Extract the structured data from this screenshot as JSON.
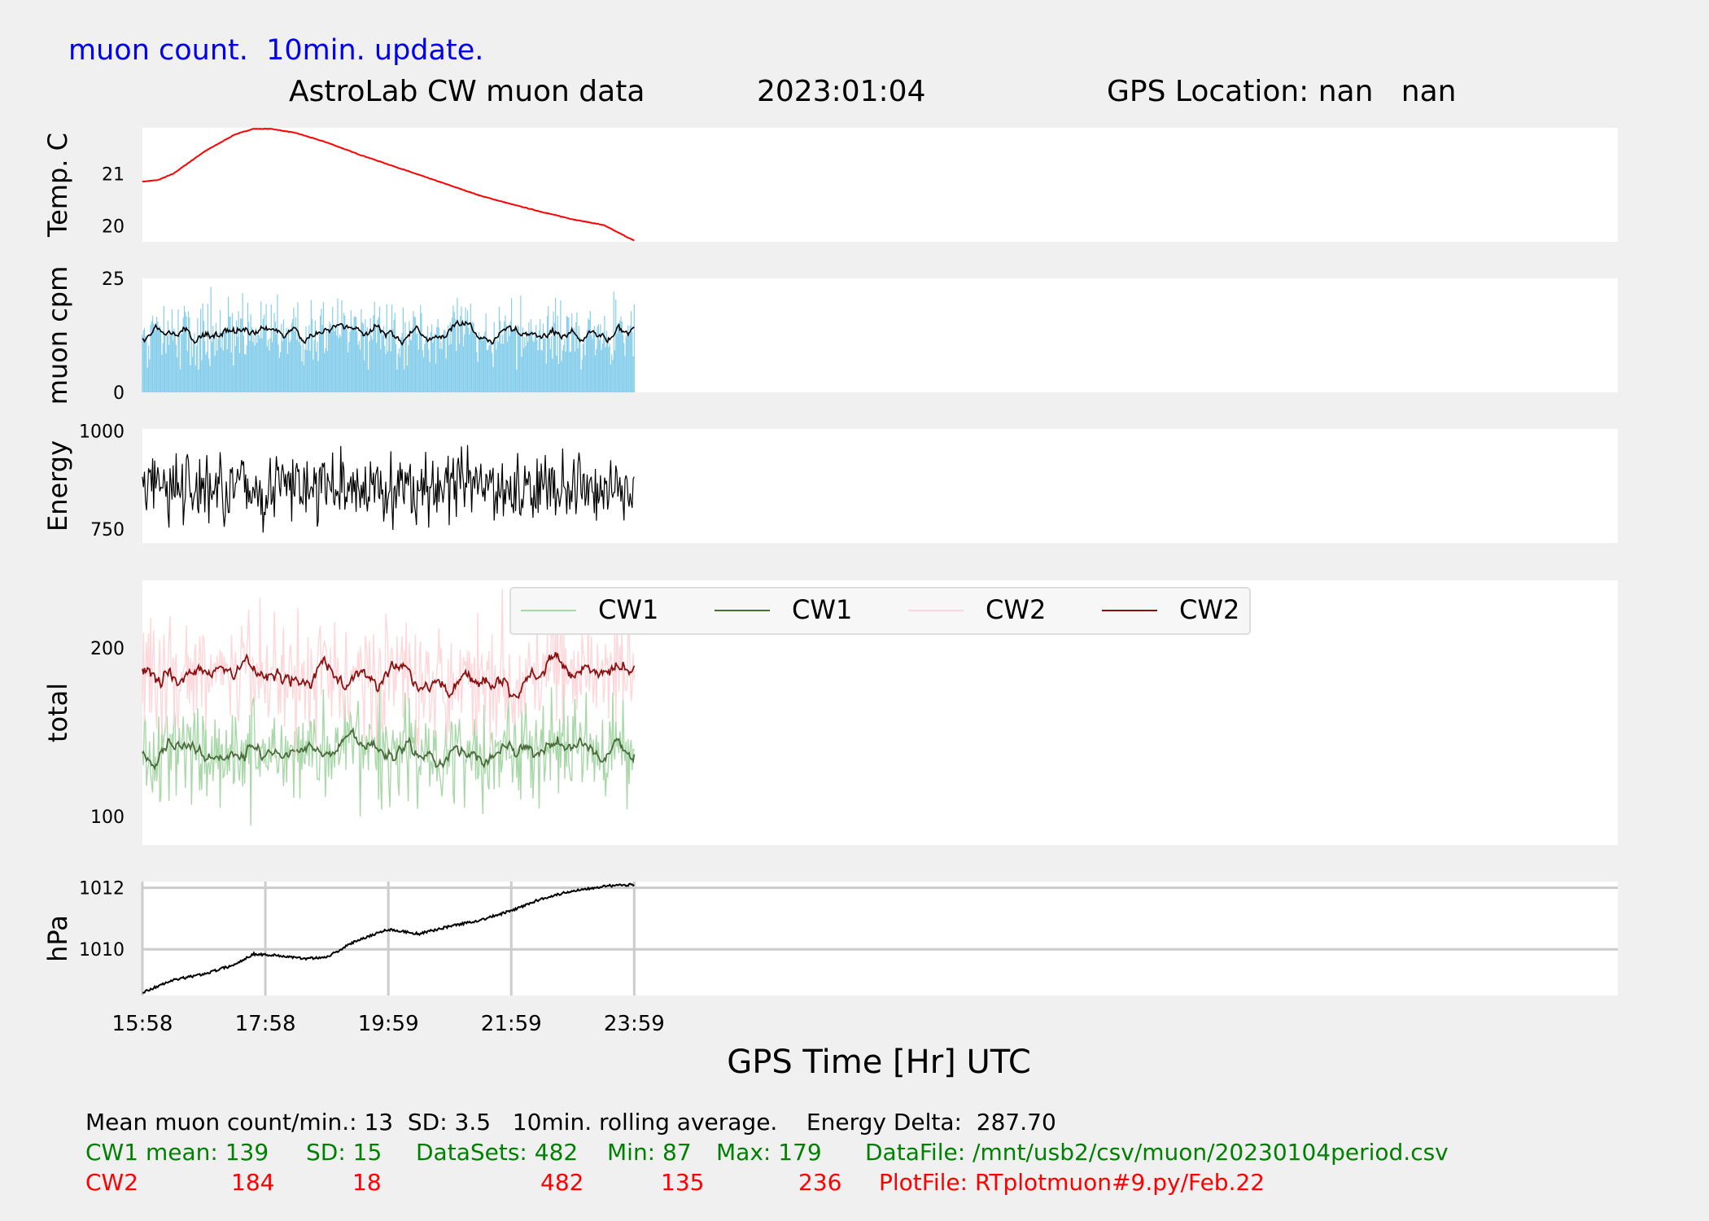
{
  "header": {
    "update_note": "muon count.  10min. update.",
    "title": "AstroLab CW muon data",
    "date": "2023:01:04",
    "gps": "GPS Location: nan   nan"
  },
  "colors": {
    "background": "#f0f0f0",
    "panel": "#ffffff",
    "temp": "#ff0000",
    "cpm_bar": "#87ceeb",
    "line": "#000000",
    "cw1_raw": "#a8d8a8",
    "cw1_avg": "#4a6b3a",
    "cw2_raw": "#ffd7da",
    "cw2_avg": "#8b1010",
    "blue_text": "#0000ee",
    "green_text": "#008000",
    "red_text": "#ff0000",
    "grid": "#cccccc"
  },
  "chart_data": {
    "type": "line",
    "x_tick_labels": [
      "15:58",
      "17:58",
      "19:59",
      "21:59",
      "23:59"
    ],
    "x_range_hours": [
      0,
      24
    ],
    "x_data_span_hours": [
      0,
      8
    ],
    "xlabel": "GPS Time  [Hr] UTC",
    "panels": [
      {
        "id": "temp",
        "ylabel": "Temp. C",
        "yticks": [
          20,
          21
        ],
        "ylim": [
          19.7,
          21.88
        ],
        "series": [
          {
            "name": "temperature",
            "kind": "line",
            "x": [
              0,
              0.25,
              0.5,
              1.0,
              1.5,
              1.8,
              2.1,
              2.5,
              3,
              3.5,
              4,
              4.5,
              5,
              5.5,
              6,
              6.5,
              7,
              7.5,
              8
            ],
            "y": [
              20.85,
              20.88,
              21.0,
              21.42,
              21.75,
              21.86,
              21.86,
              21.78,
              21.6,
              21.38,
              21.18,
              20.98,
              20.78,
              20.58,
              20.42,
              20.27,
              20.13,
              20.02,
              19.72
            ]
          }
        ]
      },
      {
        "id": "cpm",
        "ylabel": "muon cpm",
        "yticks": [
          0,
          25
        ],
        "ylim": [
          0,
          25
        ],
        "series": [
          {
            "name": "muon cpm",
            "kind": "bars",
            "mean": 13,
            "sd": 3.5,
            "count": 482
          },
          {
            "name": "10min rolling average",
            "kind": "line",
            "mean": 13
          }
        ]
      },
      {
        "id": "energy",
        "ylabel": "Energy",
        "yticks": [
          750,
          1000
        ],
        "ylim": [
          715,
          1005
        ],
        "series": [
          {
            "name": "energy",
            "kind": "line",
            "mean": 855,
            "min": 712,
            "max": 1000
          }
        ]
      },
      {
        "id": "total",
        "ylabel": "total",
        "yticks": [
          100,
          200
        ],
        "ylim": [
          83,
          240
        ],
        "legend_position": "top-center",
        "legend": [
          "CW1",
          "CW1",
          "CW2",
          "CW2"
        ],
        "series": [
          {
            "name": "CW1",
            "kind": "raw",
            "mean": 139,
            "sd": 15,
            "min": 87,
            "max": 179
          },
          {
            "name": "CW1",
            "kind": "average",
            "mean": 139
          },
          {
            "name": "CW2",
            "kind": "raw",
            "mean": 184,
            "sd": 18,
            "min": 135,
            "max": 236
          },
          {
            "name": "CW2",
            "kind": "average",
            "mean": 184
          }
        ]
      },
      {
        "id": "hpa",
        "ylabel": "hPa",
        "yticks": [
          1010,
          1012
        ],
        "ylim": [
          1008.5,
          1012.2
        ],
        "grid": true,
        "series": [
          {
            "name": "pressure",
            "kind": "line",
            "x": [
              0,
              0.5,
              1,
              1.5,
              1.8,
              2.2,
              2.6,
              3.0,
              3.5,
              4.0,
              4.5,
              5.0,
              5.5,
              6.0,
              6.5,
              7.0,
              7.5,
              8.0
            ],
            "y": [
              1008.6,
              1009.0,
              1009.2,
              1009.5,
              1009.85,
              1009.8,
              1009.7,
              1009.75,
              1010.3,
              1010.65,
              1010.5,
              1010.75,
              1010.95,
              1011.25,
              1011.65,
              1011.9,
              1012.05,
              1012.1
            ]
          }
        ]
      }
    ]
  },
  "stats": {
    "line1": "Mean muon count/min.: 13  SD: 3.5   10min. rolling average.    Energy Delta:  287.70",
    "cw1": [
      "CW1 mean: 139",
      "SD: 15",
      "DataSets: 482",
      "Min: 87",
      "Max: 179",
      "DataFile: /mnt/usb2/csv/muon/20230104period.csv"
    ],
    "cw2": [
      "CW2",
      "184",
      "18",
      "482",
      "135",
      "236",
      "PlotFile: RTplotmuon#9.py/Feb.22"
    ]
  }
}
